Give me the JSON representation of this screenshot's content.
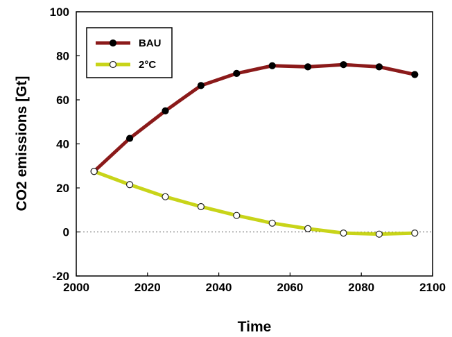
{
  "chart_data": {
    "type": "line",
    "title": "",
    "xlabel": "Time",
    "ylabel": "CO2 emissions [Gt]",
    "xlim": [
      2000,
      2100
    ],
    "ylim": [
      -20,
      100
    ],
    "x_ticks": [
      2000,
      2020,
      2040,
      2060,
      2080,
      2100
    ],
    "y_ticks": [
      -20,
      0,
      20,
      40,
      60,
      80,
      100
    ],
    "x_tick_labels": [
      "2000",
      "2020",
      "2040",
      "2060",
      "2080",
      "2100"
    ],
    "y_tick_labels": [
      "-20",
      "0",
      "20",
      "40",
      "60",
      "80",
      "100"
    ],
    "grid": false,
    "zero_reference_line": "dotted",
    "legend_position": "top-left",
    "x": [
      2005,
      2015,
      2025,
      2035,
      2045,
      2055,
      2065,
      2075,
      2085,
      2095
    ],
    "series": [
      {
        "name": "BAU",
        "color": "#8b1a1a",
        "marker": "filled-circle",
        "values": [
          27.5,
          42.5,
          55,
          66.5,
          72,
          75.5,
          75,
          76,
          75,
          71.5
        ]
      },
      {
        "name": "2°C",
        "color": "#c8d419",
        "marker": "open-circle",
        "values": [
          27.5,
          21.5,
          16,
          11.5,
          7.5,
          4,
          1.5,
          -0.5,
          -1,
          -0.5
        ]
      }
    ]
  }
}
